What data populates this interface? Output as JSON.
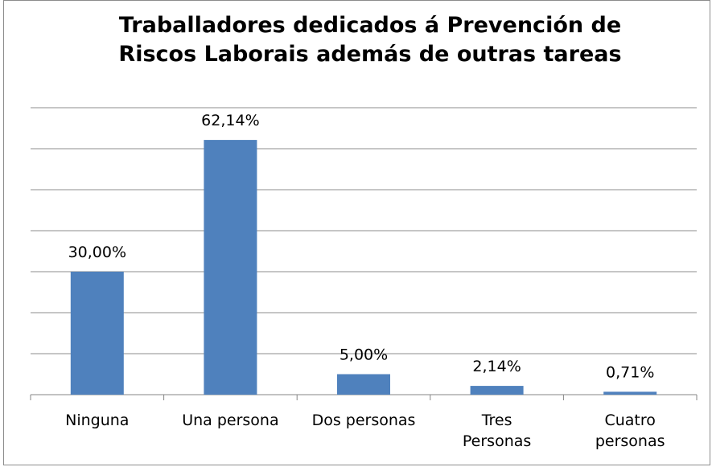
{
  "chart_data": {
    "type": "bar",
    "title": "Traballadores dedicados á Prevención de Riscos Laborais además de outras tareas",
    "categories": [
      "Ninguna",
      "Una persona",
      "Dos personas",
      "Tres Personas",
      "Cuatro personas"
    ],
    "values": [
      30.0,
      62.14,
      5.0,
      2.14,
      0.71
    ],
    "value_labels": [
      "30,00%",
      "62,14%",
      "5,00%",
      "2,14%",
      "0,71%"
    ],
    "color": "#4f81bd",
    "ylim": [
      0,
      70
    ],
    "yticks": [
      0,
      10,
      20,
      30,
      40,
      50,
      60,
      70
    ],
    "grid": true
  }
}
